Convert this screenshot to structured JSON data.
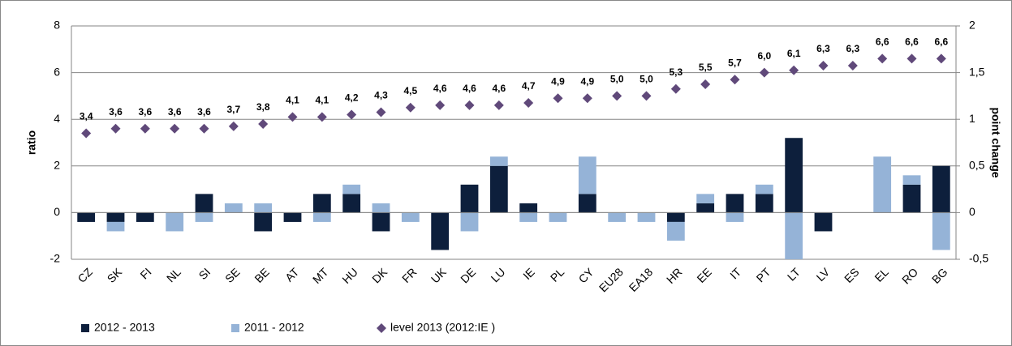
{
  "chart_data": {
    "type": "combo",
    "y_label": "ratio",
    "y2_label": "point change",
    "categories": [
      "CZ",
      "SK",
      "FI",
      "NL",
      "SI",
      "SE",
      "BE",
      "AT",
      "MT",
      "HU",
      "DK",
      "FR",
      "UK",
      "DE",
      "LU",
      "IE",
      "PL",
      "CY",
      "EU28",
      "EA18",
      "HR",
      "EE",
      "IT",
      "PT",
      "LT",
      "LV",
      "ES",
      "EL",
      "RO",
      "BG"
    ],
    "ylim": [
      -2,
      8
    ],
    "yticks": [
      -2,
      0,
      2,
      4,
      6,
      8
    ],
    "y2lim": [
      -0.5,
      2
    ],
    "y2ticks": [
      {
        "value": -0.5,
        "label": "-0,5"
      },
      0,
      {
        "value": 0.5,
        "label": "0,5"
      },
      1,
      {
        "value": 1.5,
        "label": "1,5"
      },
      2
    ],
    "grid": true,
    "legend": "bottom",
    "series": [
      {
        "name": "2012 - 2013",
        "type": "bar",
        "axis": "y2",
        "color": "#0d1f3c",
        "values": [
          -0.1,
          -0.1,
          -0.1,
          0,
          0.2,
          0,
          -0.2,
          -0.1,
          0.2,
          0.2,
          -0.2,
          0,
          -0.4,
          0.3,
          0.5,
          0.1,
          0,
          0.2,
          0,
          0,
          -0.1,
          0.1,
          0.2,
          0.2,
          0.8,
          -0.2,
          0,
          0,
          0.3,
          0.5
        ]
      },
      {
        "name": "2011 - 2012",
        "type": "bar",
        "axis": "y2",
        "color": "#95b3d7",
        "values": [
          0,
          -0.1,
          0,
          -0.2,
          -0.1,
          0.1,
          0.1,
          0,
          -0.1,
          0.1,
          0.1,
          -0.1,
          0,
          -0.2,
          0.1,
          -0.1,
          -0.1,
          0.4,
          -0.1,
          -0.1,
          -0.2,
          0.1,
          -0.1,
          0.1,
          -0.5,
          0,
          0,
          0.6,
          0.1,
          -0.4
        ]
      },
      {
        "name": "level 2013 (2012:IE )",
        "type": "scatter",
        "color": "#60497a",
        "values": [
          3.4,
          3.6,
          3.6,
          3.6,
          3.6,
          3.7,
          3.8,
          4.1,
          4.1,
          4.2,
          4.3,
          4.5,
          4.6,
          4.6,
          4.6,
          4.7,
          4.9,
          4.9,
          5.0,
          5.0,
          5.3,
          5.5,
          5.7,
          6.0,
          6.1,
          6.3,
          6.3,
          6.6,
          6.6,
          6.6
        ],
        "value_labels": [
          "3,4",
          "3,6",
          "3,6",
          "3,6",
          "3,6",
          "3,7",
          "3,8",
          "4,1",
          "4,1",
          "4,2",
          "4,3",
          "4,5",
          "4,6",
          "4,6",
          "4,6",
          "4,7",
          "4,9",
          "4,9",
          "5,0",
          "5,0",
          "5,3",
          "5,5",
          "5,7",
          "6,0",
          "6,1",
          "6,3",
          "6,3",
          "6,6",
          "6,6",
          "6,6"
        ]
      }
    ]
  }
}
